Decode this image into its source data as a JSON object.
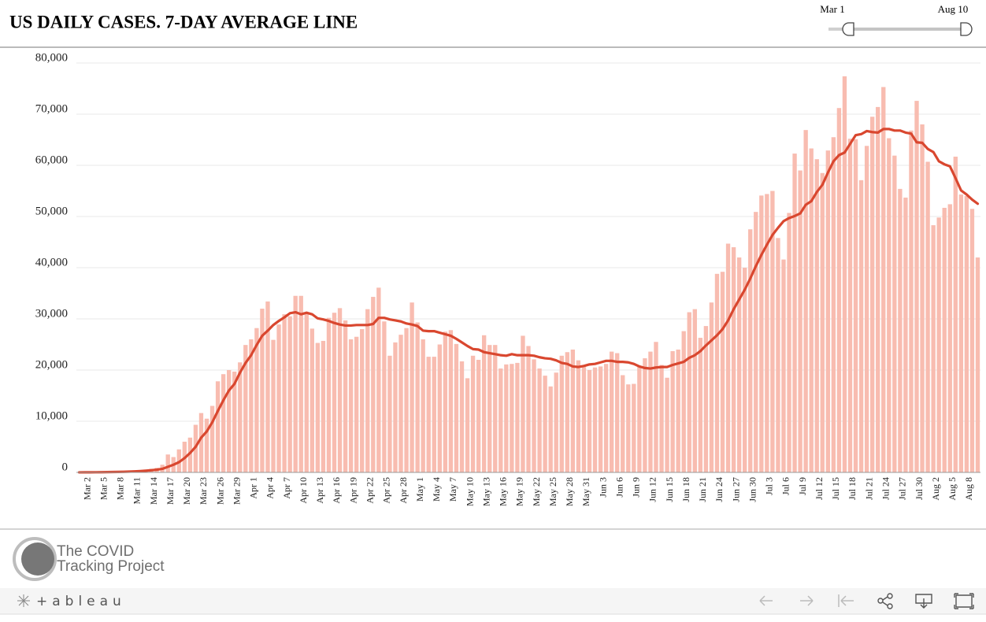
{
  "chart_data": {
    "type": "bar",
    "title": "US DAILY CASES. 7-DAY AVERAGE LINE",
    "categories": [
      null,
      "Mar 2",
      null,
      null,
      "Mar 5",
      null,
      null,
      "Mar 8",
      null,
      null,
      "Mar 11",
      null,
      null,
      "Mar 14",
      null,
      null,
      "Mar 17",
      null,
      null,
      "Mar 20",
      null,
      null,
      "Mar 23",
      null,
      null,
      "Mar 26",
      null,
      null,
      "Mar 29",
      null,
      null,
      "Apr 1",
      null,
      null,
      "Apr 4",
      null,
      null,
      "Apr 7",
      null,
      null,
      "Apr 10",
      null,
      null,
      "Apr 13",
      null,
      null,
      "Apr 16",
      null,
      null,
      "Apr 19",
      null,
      null,
      "Apr 22",
      null,
      null,
      "Apr 25",
      null,
      null,
      "Apr 28",
      null,
      null,
      "May 1",
      null,
      null,
      "May 4",
      null,
      null,
      "May 7",
      null,
      null,
      "May 10",
      null,
      null,
      "May 13",
      null,
      null,
      "May 16",
      null,
      null,
      "May 19",
      null,
      null,
      "May 22",
      null,
      null,
      "May 25",
      null,
      null,
      "May 28",
      null,
      null,
      "May 31",
      null,
      null,
      "Jun 3",
      null,
      null,
      "Jun 6",
      null,
      null,
      "Jun 9",
      null,
      null,
      "Jun 12",
      null,
      null,
      "Jun 15",
      null,
      null,
      "Jun 18",
      null,
      null,
      "Jun 21",
      null,
      null,
      "Jun 24",
      null,
      null,
      "Jun 27",
      null,
      null,
      "Jun 30",
      null,
      null,
      "Jul 3",
      null,
      null,
      "Jul 6",
      null,
      null,
      "Jul 9",
      null,
      null,
      "Jul 12",
      null,
      null,
      "Jul 15",
      null,
      null,
      "Jul 18",
      null,
      null,
      "Jul 21",
      null,
      null,
      "Jul 24",
      null,
      null,
      "Jul 27",
      null,
      null,
      "Jul 30",
      null,
      null,
      "Aug 2",
      null,
      null,
      "Aug 5",
      null,
      null,
      "Aug 8",
      null,
      null
    ],
    "series": [
      {
        "type": "bar",
        "color": "#f8bcb0",
        "values": [
          10,
          20,
          30,
          40,
          60,
          100,
          130,
          150,
          250,
          300,
          400,
          450,
          550,
          700,
          900,
          1500,
          3500,
          3000,
          4500,
          6000,
          6800,
          9300,
          11600,
          10500,
          13000,
          17800,
          19200,
          20000,
          19700,
          21500,
          24900,
          26000,
          28200,
          32000,
          33400,
          25900,
          28900,
          30900,
          30500,
          34500,
          34500,
          31000,
          28100,
          25300,
          25700,
          30200,
          31200,
          32100,
          29700,
          26000,
          26500,
          28000,
          31900,
          34300,
          36100,
          29500,
          22800,
          25400,
          26900,
          28200,
          33200,
          29300,
          26000,
          22600,
          22600,
          25000,
          27500,
          27800,
          25100,
          21700,
          18400,
          22800,
          22000,
          26800,
          24900,
          24900,
          20300,
          21100,
          21200,
          21400,
          26700,
          24700,
          22100,
          20300,
          18900,
          16800,
          19500,
          22800,
          23500,
          24000,
          21900,
          20600,
          20000,
          20500,
          20700,
          21200,
          23600,
          23300,
          19000,
          17200,
          17300,
          20700,
          22300,
          23600,
          25500,
          21000,
          18500,
          23700,
          24000,
          27600,
          31300,
          31900,
          26300,
          28600,
          33200,
          38800,
          39200,
          44700,
          44000,
          42000,
          40000,
          47500,
          50900,
          54100,
          54400,
          55000,
          45800,
          41600,
          50700,
          62300,
          59000,
          66900,
          63300,
          61200,
          58500,
          62900,
          65500,
          71200,
          77400,
          65200,
          65100,
          57100,
          63800,
          69500,
          71400,
          75300,
          65300,
          61900,
          55400,
          53700,
          66800,
          72600,
          68000,
          60700,
          48300,
          49800,
          51700,
          52400,
          61700,
          54300,
          54000,
          51500,
          42000
        ]
      },
      {
        "type": "line",
        "color": "#d9472f",
        "values": [
          10,
          15,
          20,
          30,
          40,
          55,
          75,
          95,
          120,
          150,
          200,
          260,
          330,
          420,
          530,
          700,
          1100,
          1500,
          2000,
          2800,
          3800,
          5000,
          6800,
          8000,
          9800,
          12000,
          14100,
          16000,
          17300,
          19500,
          21400,
          22900,
          24900,
          26700,
          27700,
          28800,
          29600,
          30300,
          31100,
          31300,
          30900,
          31200,
          30900,
          30100,
          29900,
          29600,
          29200,
          28900,
          28700,
          28700,
          28800,
          28800,
          28800,
          29000,
          30200,
          30200,
          29900,
          29700,
          29500,
          29100,
          28900,
          28600,
          27700,
          27600,
          27600,
          27300,
          27000,
          26700,
          26100,
          25400,
          24700,
          24100,
          24000,
          23500,
          23300,
          23100,
          22900,
          22800,
          23100,
          22900,
          22900,
          22900,
          22800,
          22500,
          22300,
          22200,
          21900,
          21400,
          21200,
          20700,
          20600,
          20800,
          21100,
          21200,
          21500,
          21800,
          21800,
          21600,
          21600,
          21500,
          21200,
          20700,
          20400,
          20300,
          20500,
          20600,
          20600,
          21000,
          21300,
          21600,
          22400,
          22900,
          23700,
          24800,
          25800,
          26800,
          28000,
          29700,
          31900,
          33800,
          35700,
          37900,
          40300,
          42500,
          44500,
          46400,
          47800,
          49100,
          49700,
          50100,
          50600,
          52300,
          53000,
          54800,
          56200,
          58600,
          60800,
          62000,
          62500,
          64200,
          65900,
          66100,
          66700,
          66500,
          66400,
          67100,
          67100,
          66800,
          66800,
          66400,
          66200,
          64500,
          64400,
          63200,
          62600,
          60800,
          60200,
          59800,
          57500,
          55100,
          54300,
          53300,
          52500
        ]
      }
    ],
    "ylim": [
      0,
      80000
    ],
    "yticks": [
      0,
      {
        "value": 10000,
        "label": "10,000"
      },
      {
        "value": 20000,
        "label": "20,000"
      },
      {
        "value": 30000,
        "label": "30,000"
      },
      {
        "value": 40000,
        "label": "40,000"
      },
      {
        "value": 50000,
        "label": "50,000"
      },
      {
        "value": 60000,
        "label": "60,000"
      },
      {
        "value": 70000,
        "label": "70,000"
      },
      {
        "value": 80000,
        "label": "80,000"
      }
    ],
    "grid": true
  },
  "slider": {
    "start": "Mar 1",
    "end": "Aug 10"
  },
  "logo": {
    "line1": "The COVID",
    "line2": "Tracking Project"
  },
  "toolbar": {
    "brand": "+ableau"
  }
}
